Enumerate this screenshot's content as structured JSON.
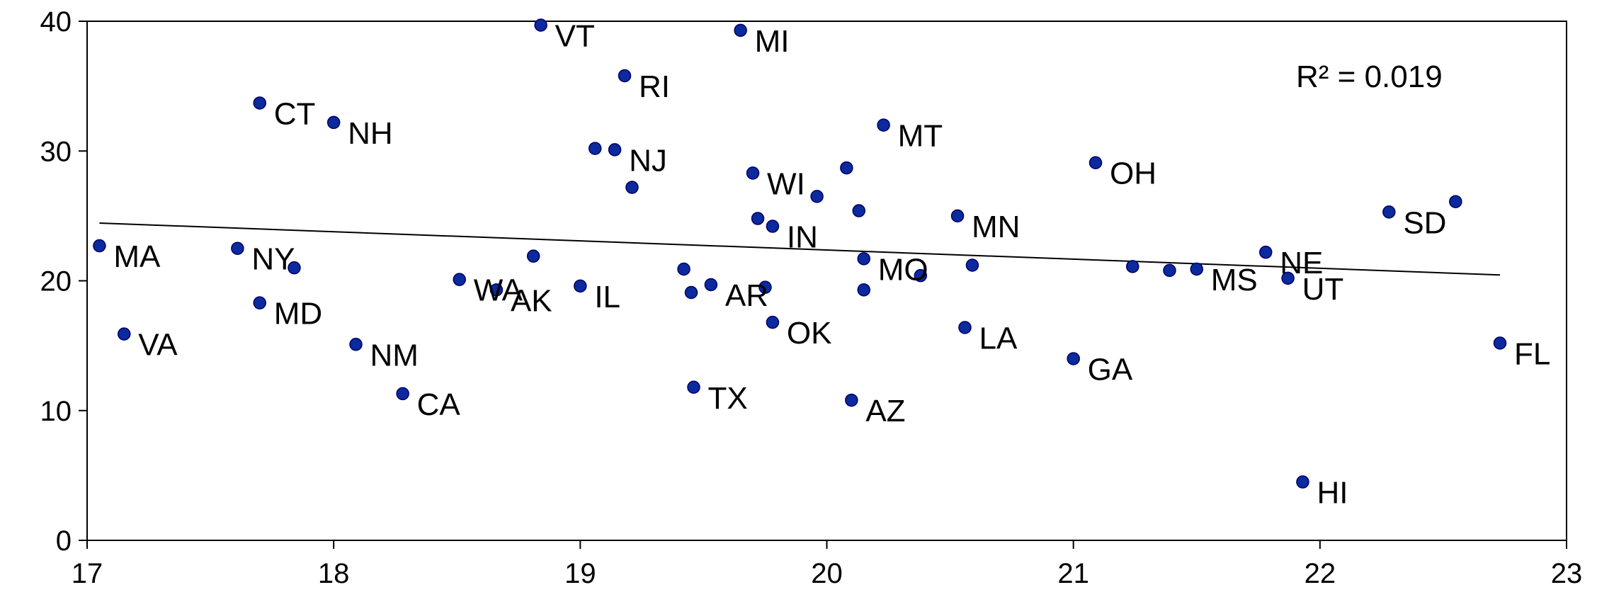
{
  "chart_data": {
    "type": "scatter",
    "title": "",
    "xlabel": "",
    "ylabel": "",
    "xlim": [
      17,
      23
    ],
    "ylim": [
      0,
      40
    ],
    "x_ticks": [
      "17",
      "18",
      "19",
      "20",
      "21",
      "22",
      "23"
    ],
    "y_ticks": [
      "0",
      "10",
      "20",
      "30",
      "40"
    ],
    "grid": false,
    "marker_color": "#0b2a9e",
    "marker_edge_color": "#000066",
    "trendline": {
      "x": [
        17.05,
        22.73
      ],
      "y": [
        24.45,
        20.45
      ]
    },
    "annotation": "R² = 0.019",
    "points": [
      {
        "x": 17.05,
        "y": 22.7,
        "label": "MA"
      },
      {
        "x": 17.15,
        "y": 15.9,
        "label": "VA"
      },
      {
        "x": 17.61,
        "y": 22.5,
        "label": "NY"
      },
      {
        "x": 17.7,
        "y": 18.3,
        "label": "MD"
      },
      {
        "x": 17.7,
        "y": 33.7,
        "label": "CT"
      },
      {
        "x": 17.84,
        "y": 21.0,
        "label": ""
      },
      {
        "x": 18.0,
        "y": 32.2,
        "label": "NH"
      },
      {
        "x": 18.09,
        "y": 15.1,
        "label": "NM"
      },
      {
        "x": 18.28,
        "y": 11.3,
        "label": "CA"
      },
      {
        "x": 18.51,
        "y": 20.1,
        "label": "WA"
      },
      {
        "x": 18.66,
        "y": 19.3,
        "label": "AK"
      },
      {
        "x": 18.81,
        "y": 21.9,
        "label": ""
      },
      {
        "x": 18.84,
        "y": 39.7,
        "label": "VT"
      },
      {
        "x": 19.0,
        "y": 19.6,
        "label": "IL"
      },
      {
        "x": 19.06,
        "y": 30.2,
        "label": ""
      },
      {
        "x": 19.14,
        "y": 30.1,
        "label": "NJ"
      },
      {
        "x": 19.18,
        "y": 35.8,
        "label": "RI"
      },
      {
        "x": 19.21,
        "y": 27.2,
        "label": ""
      },
      {
        "x": 19.42,
        "y": 20.9,
        "label": ""
      },
      {
        "x": 19.45,
        "y": 19.1,
        "label": ""
      },
      {
        "x": 19.46,
        "y": 11.8,
        "label": "TX"
      },
      {
        "x": 19.53,
        "y": 19.7,
        "label": "AR"
      },
      {
        "x": 19.65,
        "y": 39.3,
        "label": "MI"
      },
      {
        "x": 19.7,
        "y": 28.3,
        "label": "WI"
      },
      {
        "x": 19.72,
        "y": 24.8,
        "label": ""
      },
      {
        "x": 19.75,
        "y": 19.5,
        "label": ""
      },
      {
        "x": 19.78,
        "y": 24.2,
        "label": "IN"
      },
      {
        "x": 19.78,
        "y": 16.8,
        "label": "OK"
      },
      {
        "x": 19.96,
        "y": 26.5,
        "label": ""
      },
      {
        "x": 20.08,
        "y": 28.7,
        "label": ""
      },
      {
        "x": 20.1,
        "y": 10.8,
        "label": "AZ"
      },
      {
        "x": 20.13,
        "y": 25.4,
        "label": ""
      },
      {
        "x": 20.15,
        "y": 21.7,
        "label": "MO"
      },
      {
        "x": 20.15,
        "y": 19.3,
        "label": ""
      },
      {
        "x": 20.23,
        "y": 32.0,
        "label": "MT"
      },
      {
        "x": 20.38,
        "y": 20.4,
        "label": ""
      },
      {
        "x": 20.53,
        "y": 25.0,
        "label": "MN"
      },
      {
        "x": 20.56,
        "y": 16.4,
        "label": "LA"
      },
      {
        "x": 20.59,
        "y": 21.2,
        "label": ""
      },
      {
        "x": 21.0,
        "y": 14.0,
        "label": "GA"
      },
      {
        "x": 21.09,
        "y": 29.1,
        "label": "OH"
      },
      {
        "x": 21.24,
        "y": 21.1,
        "label": ""
      },
      {
        "x": 21.39,
        "y": 20.8,
        "label": ""
      },
      {
        "x": 21.5,
        "y": 20.9,
        "label": "MS"
      },
      {
        "x": 21.78,
        "y": 22.2,
        "label": "NE"
      },
      {
        "x": 21.87,
        "y": 20.2,
        "label": "UT"
      },
      {
        "x": 21.93,
        "y": 4.5,
        "label": "HI"
      },
      {
        "x": 22.28,
        "y": 25.3,
        "label": "SD"
      },
      {
        "x": 22.55,
        "y": 26.1,
        "label": ""
      },
      {
        "x": 22.73,
        "y": 15.2,
        "label": "FL"
      }
    ]
  }
}
